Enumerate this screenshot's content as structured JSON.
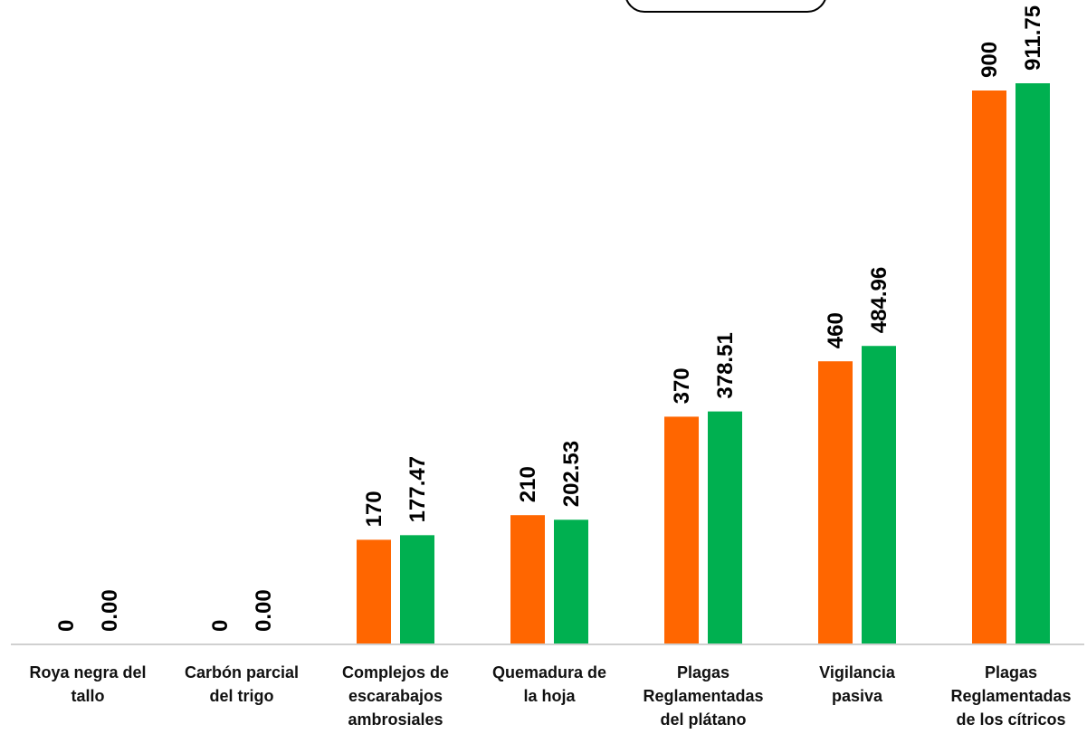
{
  "chart_data": {
    "type": "bar",
    "categories": [
      "Roya negra del tallo",
      "Carbón parcial del trigo",
      "Complejos de escarabajos ambrosiales",
      "Quemadura de la hoja",
      "Plagas Reglamentadas del plátano",
      "Vigilancia pasiva",
      "Plagas Reglamentadas de los cítricos"
    ],
    "series": [
      {
        "values": [
          0,
          0,
          170,
          210,
          370,
          460,
          900
        ],
        "labels": [
          "0",
          "0",
          "170",
          "210",
          "370",
          "460",
          "900"
        ],
        "color": "#FF6600"
      },
      {
        "values": [
          0.0,
          0.0,
          177.47,
          202.53,
          378.51,
          484.96,
          911.75
        ],
        "labels": [
          "0.00",
          "0.00",
          "177.47",
          "202.53",
          "378.51",
          "484.96",
          "911.75"
        ],
        "color": "#00B050"
      }
    ],
    "ylim": [
      0,
      1000
    ],
    "grid": false,
    "legend": "top"
  }
}
